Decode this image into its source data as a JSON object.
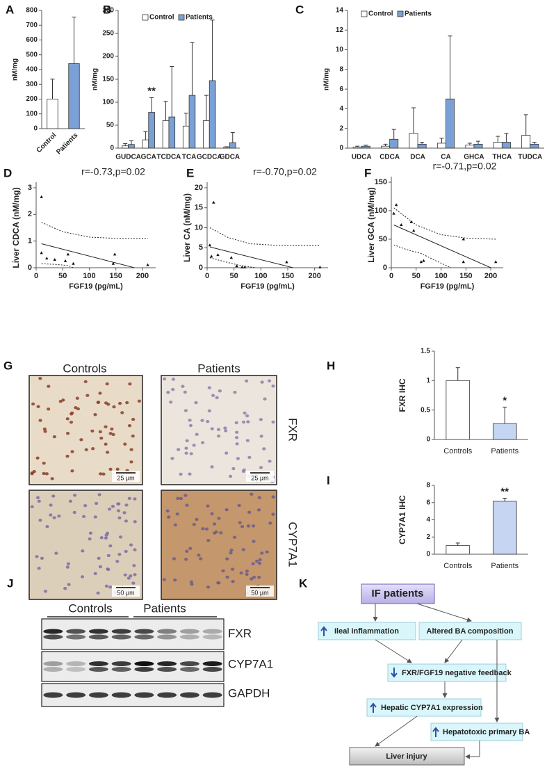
{
  "chart_data": [
    {
      "type": "bar",
      "panel": "A",
      "ylabel": "nM/mg",
      "categories": [
        "Control",
        "Patients"
      ],
      "values": [
        200,
        440
      ],
      "errors": [
        135,
        315
      ],
      "colors": [
        "#ffffff",
        "#7ba0d6"
      ],
      "ylim": [
        0,
        800
      ],
      "yticks": [
        0,
        100,
        200,
        300,
        400,
        500,
        600,
        700,
        800
      ]
    },
    {
      "type": "bar",
      "panel": "B",
      "ylabel": "nM/mg",
      "annotation": "**",
      "categories": [
        "GUDCA",
        "GCA",
        "TCDCA",
        "TCA",
        "GCDCA",
        "GDCA"
      ],
      "series": [
        {
          "name": "Control",
          "color": "#ffffff",
          "values": [
            5,
            18,
            60,
            48,
            60,
            2
          ],
          "errors": [
            5,
            18,
            42,
            28,
            55,
            1
          ]
        },
        {
          "name": "Patients",
          "color": "#7ba0d6",
          "values": [
            8,
            78,
            68,
            115,
            147,
            12
          ],
          "errors": [
            8,
            32,
            110,
            115,
            132,
            22
          ]
        }
      ],
      "ylim": [
        0,
        300
      ],
      "yticks": [
        0,
        50,
        100,
        150,
        200,
        250,
        300
      ]
    },
    {
      "type": "bar",
      "panel": "C",
      "ylabel": "nM/mg",
      "categories": [
        "UDCA",
        "CDCA",
        "DCA",
        "CA",
        "GHCA",
        "THCA",
        "TUDCA"
      ],
      "series": [
        {
          "name": "Control",
          "color": "#ffffff",
          "values": [
            0.1,
            0.2,
            1.5,
            0.5,
            0.3,
            0.6,
            1.3
          ],
          "errors": [
            0.1,
            0.2,
            2.6,
            0.5,
            0.2,
            0.6,
            2.1
          ]
        },
        {
          "name": "Patients",
          "color": "#7ba0d6",
          "values": [
            0.2,
            0.9,
            0.4,
            5.0,
            0.4,
            0.6,
            0.4
          ],
          "errors": [
            0.1,
            1.0,
            0.2,
            6.4,
            0.3,
            0.9,
            0.2
          ]
        }
      ],
      "ylim": [
        0,
        14
      ],
      "yticks": [
        0,
        2,
        4,
        6,
        8,
        10,
        12,
        14
      ]
    },
    {
      "type": "scatter",
      "panel": "D",
      "annotation": "r=-0.73,p=0.02",
      "xlabel": "FGF19 (pg/mL)",
      "ylabel": "Liver CDCA (nM/mg)",
      "x": [
        10,
        10,
        20,
        35,
        55,
        60,
        70,
        145,
        148,
        210
      ],
      "values": [
        2.65,
        0.55,
        0.35,
        0.3,
        0.25,
        0.5,
        0.15,
        0.15,
        0.5,
        0.1
      ],
      "fit": {
        "x": [
          10,
          185
        ],
        "values": [
          0.9,
          0
        ]
      },
      "ci_upper": {
        "x": [
          10,
          50,
          100,
          150,
          210
        ],
        "values": [
          1.7,
          1.35,
          1.15,
          1.1,
          1.1
        ]
      },
      "ci_lower": {
        "x": [
          10,
          40,
          60,
          70
        ],
        "values": [
          0.15,
          0.12,
          0.08,
          0
        ]
      },
      "xlim": [
        0,
        225
      ],
      "ylim": [
        0,
        3
      ],
      "xticks": [
        0,
        50,
        100,
        150,
        200
      ],
      "yticks": [
        0,
        1,
        2,
        3
      ]
    },
    {
      "type": "scatter",
      "panel": "E",
      "annotation": "r=-0.70,p=0.02",
      "xlabel": "FGF19 (pg/mL)",
      "ylabel": "Liver CA (nM/mg)",
      "x": [
        12,
        5,
        8,
        20,
        45,
        55,
        65,
        70,
        148,
        210
      ],
      "values": [
        16.3,
        5.6,
        2.8,
        3.2,
        2.5,
        0.4,
        0.1,
        0.1,
        1.4,
        0.1
      ],
      "fit": {
        "x": [
          5,
          160
        ],
        "values": [
          5.2,
          0
        ]
      },
      "ci_upper": {
        "x": [
          5,
          40,
          80,
          130,
          210
        ],
        "values": [
          10,
          7.5,
          6,
          5.6,
          5.5
        ]
      },
      "ci_lower": {
        "x": [
          5,
          30,
          60,
          90
        ],
        "values": [
          2.5,
          1.6,
          0.6,
          0
        ]
      },
      "xlim": [
        0,
        225
      ],
      "ylim": [
        0,
        20
      ],
      "xticks": [
        0,
        50,
        100,
        150,
        200
      ],
      "yticks": [
        0,
        5,
        10,
        15,
        20
      ]
    },
    {
      "type": "scatter",
      "panel": "F",
      "annotation": "r=-0.71,p=0.02",
      "xlabel": "FGF19 (pg/mL)",
      "ylabel": "Liver GCA (nM/mg)",
      "x": [
        5,
        10,
        20,
        40,
        45,
        60,
        65,
        145,
        145,
        210
      ],
      "values": [
        95,
        110,
        75,
        80,
        65,
        10,
        12,
        50,
        10,
        10
      ],
      "fit": {
        "x": [
          5,
          200
        ],
        "values": [
          75,
          0
        ]
      },
      "ci_upper": {
        "x": [
          5,
          50,
          100,
          150,
          210
        ],
        "values": [
          105,
          75,
          58,
          52,
          50
        ]
      },
      "ci_lower": {
        "x": [
          5,
          30,
          60,
          90,
          120
        ],
        "values": [
          40,
          32,
          25,
          12,
          0
        ]
      },
      "xlim": [
        0,
        225
      ],
      "ylim": [
        0,
        150
      ],
      "xticks": [
        0,
        50,
        100,
        150,
        200
      ],
      "yticks": [
        0,
        50,
        100,
        150
      ]
    },
    {
      "type": "bar",
      "panel": "H",
      "ylabel": "FXR IHC",
      "annotation": "*",
      "categories": [
        "Controls",
        "Patients"
      ],
      "values": [
        1,
        0.27
      ],
      "errors": [
        0.22,
        0.28
      ],
      "colors": [
        "#ffffff",
        "#c5d5f2"
      ],
      "ylim": [
        0,
        1.5
      ],
      "yticks": [
        0,
        0.5,
        1,
        1.5
      ]
    },
    {
      "type": "bar",
      "panel": "I",
      "ylabel": "CYP7A1 IHC",
      "annotation": "**",
      "categories": [
        "Controls",
        "Patients"
      ],
      "values": [
        1,
        6.15
      ],
      "errors": [
        0.3,
        0.35
      ],
      "colors": [
        "#ffffff",
        "#c5d5f2"
      ],
      "ylim": [
        0,
        8
      ],
      "yticks": [
        0,
        2,
        4,
        6,
        8
      ]
    }
  ],
  "micrographs": {
    "panel": "G",
    "columns": [
      "Controls",
      "Patients"
    ],
    "rows": [
      "FXR",
      "CYP7A1"
    ],
    "scale_bars": [
      [
        "25 µm",
        "25 µm"
      ],
      [
        "50 µm",
        "50 µm"
      ]
    ]
  },
  "western_blot": {
    "panel": "J",
    "groups": [
      "Controls",
      "Patients"
    ],
    "proteins": [
      "FXR",
      "CYP7A1",
      "GAPDH"
    ]
  },
  "diagram": {
    "panel": "K",
    "nodes": [
      "IF patients",
      "Ileal inflammation",
      "Altered BA composition",
      "FXR/FGF19 negative feedback",
      "Hepatic CYP7A1 expression",
      "Hepatotoxic primary BA",
      "Liver injury"
    ]
  }
}
